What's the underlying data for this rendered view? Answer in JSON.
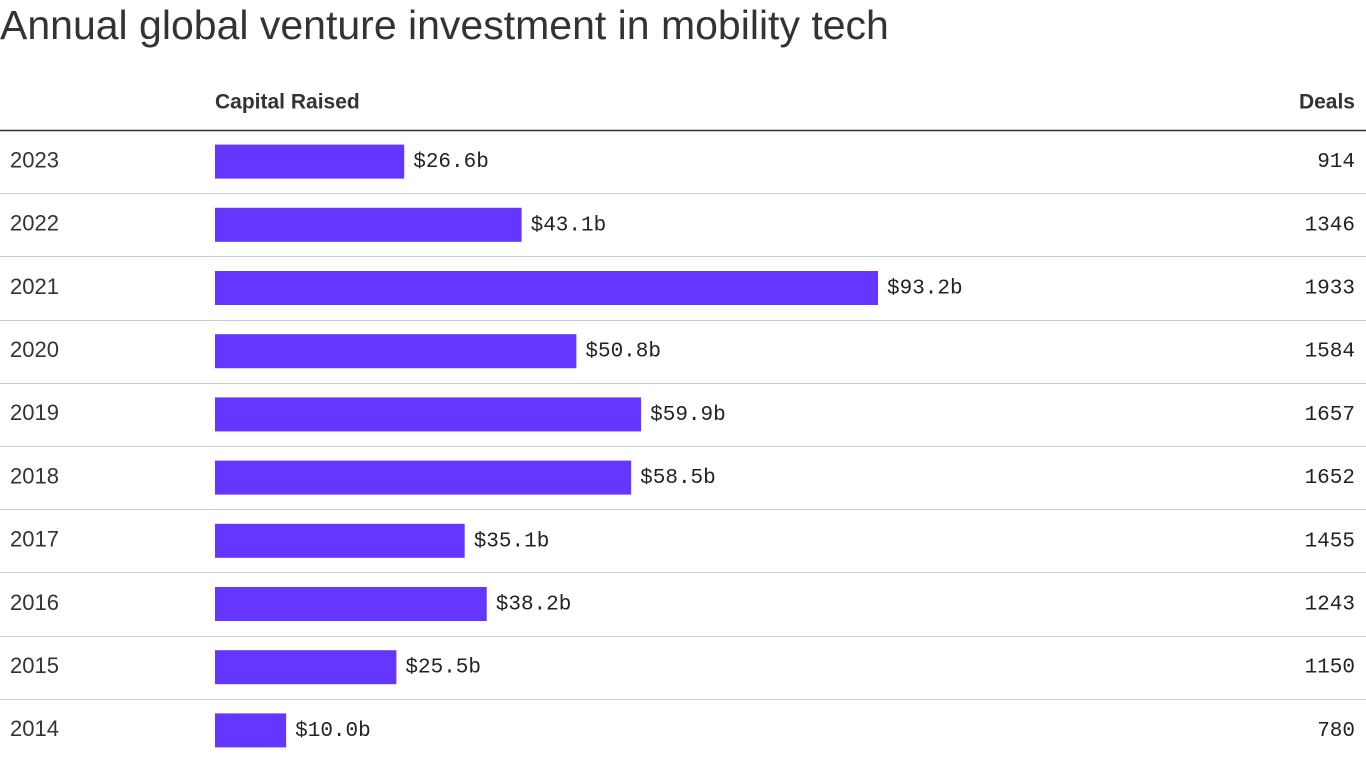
{
  "chart_data": {
    "type": "bar",
    "title": "Annual global venture investment in mobility tech",
    "categories": [
      "2023",
      "2022",
      "2021",
      "2020",
      "2019",
      "2018",
      "2017",
      "2016",
      "2015",
      "2014"
    ],
    "series": [
      {
        "name": "Capital Raised",
        "color": "#6536ff",
        "values": [
          26.6,
          43.1,
          93.2,
          50.8,
          59.9,
          58.5,
          35.1,
          38.2,
          25.5,
          10.0
        ],
        "value_labels": [
          "$26.6b",
          "$43.1b",
          "$93.2b",
          "$50.8b",
          "$59.9b",
          "$58.5b",
          "$35.1b",
          "$38.2b",
          "$25.5b",
          "$10.0b"
        ]
      },
      {
        "name": "Deals",
        "values": [
          914,
          1346,
          1933,
          1584,
          1657,
          1652,
          1455,
          1243,
          1150,
          780
        ]
      }
    ]
  }
}
